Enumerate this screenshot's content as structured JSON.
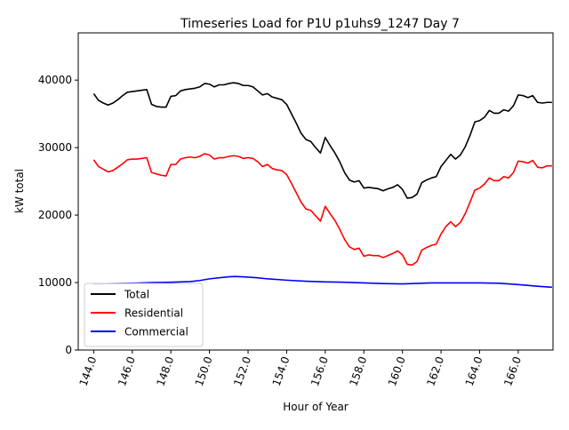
{
  "chart_data": {
    "type": "line",
    "title": "Timeseries Load for P1U p1uhs9_1247  Day 7",
    "xlabel": "Hour of Year",
    "ylabel": "kW total",
    "xlim": [
      143.2,
      167.8
    ],
    "ylim": [
      0,
      47000
    ],
    "x_ticks": [
      144,
      146,
      148,
      150,
      152,
      154,
      156,
      158,
      160,
      162,
      164,
      166
    ],
    "x_tick_labels": [
      "144.0",
      "146.0",
      "148.0",
      "150.0",
      "152.0",
      "154.0",
      "156.0",
      "158.0",
      "160.0",
      "162.0",
      "164.0",
      "166.0"
    ],
    "y_ticks": [
      0,
      10000,
      20000,
      30000,
      40000
    ],
    "y_tick_labels": [
      "0",
      "10000",
      "20000",
      "30000",
      "40000"
    ],
    "grid": false,
    "legend_position": "lower-left",
    "series": [
      {
        "name": "Total",
        "color": "#000000",
        "x": [
          144.0,
          144.25,
          144.5,
          144.75,
          145.0,
          145.25,
          145.5,
          145.75,
          146.0,
          146.25,
          146.5,
          146.75,
          147.0,
          147.25,
          147.5,
          147.75,
          148.0,
          148.25,
          148.5,
          148.75,
          149.0,
          149.25,
          149.5,
          149.75,
          150.0,
          150.25,
          150.5,
          150.75,
          151.0,
          151.25,
          151.5,
          151.75,
          152.0,
          152.25,
          152.5,
          152.75,
          153.0,
          153.25,
          153.5,
          153.75,
          154.0,
          154.25,
          154.5,
          154.75,
          155.0,
          155.25,
          155.5,
          155.75,
          156.0,
          156.25,
          156.5,
          156.75,
          157.0,
          157.25,
          157.5,
          157.75,
          158.0,
          158.25,
          158.5,
          158.75,
          159.0,
          159.25,
          159.5,
          159.75,
          160.0,
          160.25,
          160.5,
          160.75,
          161.0,
          161.25,
          161.5,
          161.75,
          162.0,
          162.25,
          162.5,
          162.75,
          163.0,
          163.25,
          163.5,
          163.75,
          164.0,
          164.25,
          164.5,
          164.75,
          165.0,
          165.25,
          165.5,
          165.75,
          166.0,
          166.25,
          166.5,
          166.75,
          167.0,
          167.25,
          167.5,
          167.75
        ],
        "values": [
          38000,
          37000,
          36600,
          36300,
          36600,
          37100,
          37700,
          38200,
          38300,
          38400,
          38500,
          38600,
          36400,
          36100,
          36000,
          36000,
          37600,
          37700,
          38400,
          38600,
          38700,
          38800,
          39000,
          39500,
          39400,
          39000,
          39300,
          39300,
          39500,
          39600,
          39500,
          39200,
          39200,
          39000,
          38400,
          37800,
          38000,
          37500,
          37300,
          37100,
          36400,
          35000,
          33600,
          32100,
          31200,
          30900,
          30000,
          29200,
          31500,
          30300,
          29200,
          27900,
          26300,
          25200,
          24900,
          25100,
          24000,
          24100,
          24000,
          23900,
          23600,
          23900,
          24100,
          24500,
          23800,
          22500,
          22600,
          23100,
          24800,
          25200,
          25500,
          25700,
          27200,
          28100,
          29000,
          28300,
          28900,
          30100,
          31800,
          33800,
          34000,
          34500,
          35500,
          35100,
          35100,
          35600,
          35400,
          36200,
          37800,
          37700,
          37400,
          37700,
          36700,
          36600,
          36700,
          36700
        ]
      },
      {
        "name": "Residential",
        "color": "#ff0000",
        "x": [
          144.0,
          144.25,
          144.5,
          144.75,
          145.0,
          145.25,
          145.5,
          145.75,
          146.0,
          146.25,
          146.5,
          146.75,
          147.0,
          147.25,
          147.5,
          147.75,
          148.0,
          148.25,
          148.5,
          148.75,
          149.0,
          149.25,
          149.5,
          149.75,
          150.0,
          150.25,
          150.5,
          150.75,
          151.0,
          151.25,
          151.5,
          151.75,
          152.0,
          152.25,
          152.5,
          152.75,
          153.0,
          153.25,
          153.5,
          153.75,
          154.0,
          154.25,
          154.5,
          154.75,
          155.0,
          155.25,
          155.5,
          155.75,
          156.0,
          156.25,
          156.5,
          156.75,
          157.0,
          157.25,
          157.5,
          157.75,
          158.0,
          158.25,
          158.5,
          158.75,
          159.0,
          159.25,
          159.5,
          159.75,
          160.0,
          160.25,
          160.5,
          160.75,
          161.0,
          161.25,
          161.5,
          161.75,
          162.0,
          162.25,
          162.5,
          162.75,
          163.0,
          163.25,
          163.5,
          163.75,
          164.0,
          164.25,
          164.5,
          164.75,
          165.0,
          165.25,
          165.5,
          165.75,
          166.0,
          166.25,
          166.5,
          166.75,
          167.0,
          167.25,
          167.5,
          167.75
        ],
        "values": [
          28200,
          27200,
          26800,
          26400,
          26600,
          27100,
          27600,
          28200,
          28300,
          28300,
          28400,
          28500,
          26300,
          26100,
          25900,
          25800,
          27500,
          27500,
          28300,
          28500,
          28600,
          28500,
          28700,
          29100,
          28900,
          28300,
          28500,
          28500,
          28700,
          28800,
          28700,
          28400,
          28500,
          28400,
          27900,
          27200,
          27500,
          26900,
          26700,
          26600,
          26000,
          24700,
          23300,
          21900,
          20900,
          20700,
          19900,
          19100,
          21300,
          20200,
          19200,
          17900,
          16400,
          15300,
          14900,
          15100,
          13900,
          14100,
          14000,
          14000,
          13700,
          14000,
          14300,
          14700,
          14100,
          12700,
          12600,
          13100,
          14800,
          15200,
          15500,
          15700,
          17200,
          18300,
          19000,
          18300,
          18900,
          20200,
          21900,
          23700,
          24000,
          24600,
          25500,
          25100,
          25100,
          25700,
          25500,
          26300,
          28000,
          27900,
          27700,
          28100,
          27100,
          27000,
          27300,
          27300
        ]
      },
      {
        "name": "Commercial",
        "color": "#0000ff",
        "x": [
          144.0,
          145.0,
          146.0,
          147.0,
          148.0,
          149.0,
          149.5,
          150.0,
          150.5,
          151.0,
          151.3,
          151.7,
          152.0,
          152.5,
          153.0,
          154.0,
          155.0,
          156.0,
          157.0,
          158.0,
          159.0,
          160.0,
          160.5,
          161.0,
          161.5,
          162.0,
          162.5,
          163.0,
          164.0,
          165.0,
          166.0,
          167.0,
          167.75
        ],
        "values": [
          9800,
          9850,
          9900,
          10000,
          10050,
          10150,
          10300,
          10550,
          10700,
          10850,
          10900,
          10850,
          10800,
          10700,
          10550,
          10350,
          10200,
          10100,
          10050,
          9950,
          9850,
          9800,
          9850,
          9900,
          9950,
          9950,
          9950,
          9950,
          9950,
          9900,
          9700,
          9450,
          9300
        ]
      }
    ]
  }
}
